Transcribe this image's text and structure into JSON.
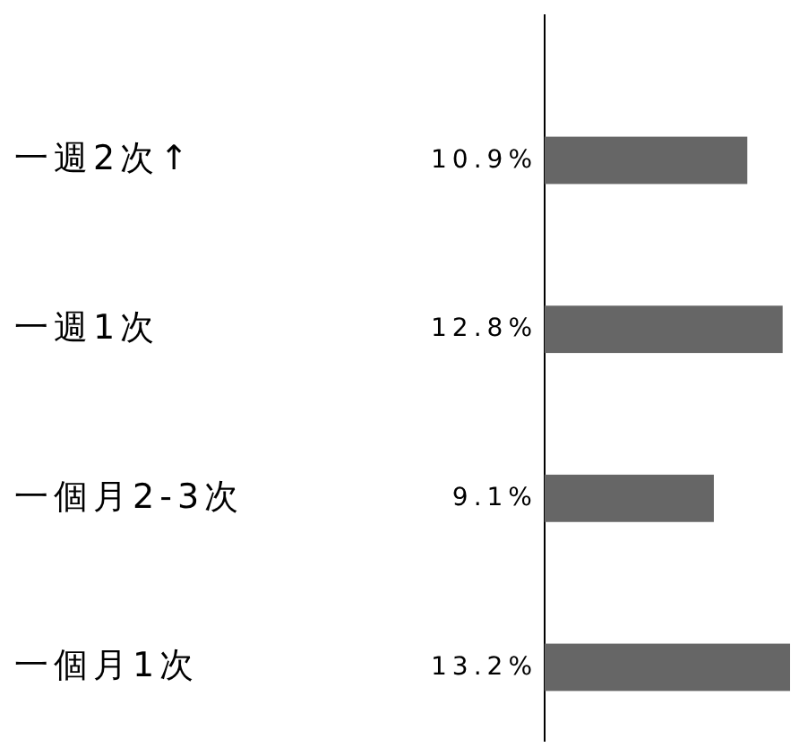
{
  "chart_data": {
    "type": "bar",
    "orientation": "horizontal",
    "categories": [
      "一週2次↑",
      "一週1次",
      "一個月2-3次",
      "一個月1次"
    ],
    "values": [
      10.9,
      12.8,
      9.1,
      13.2
    ],
    "color": "#666666",
    "value_labels": [
      "10.9%",
      "12.8%",
      "9.1%",
      "13.2%"
    ]
  }
}
